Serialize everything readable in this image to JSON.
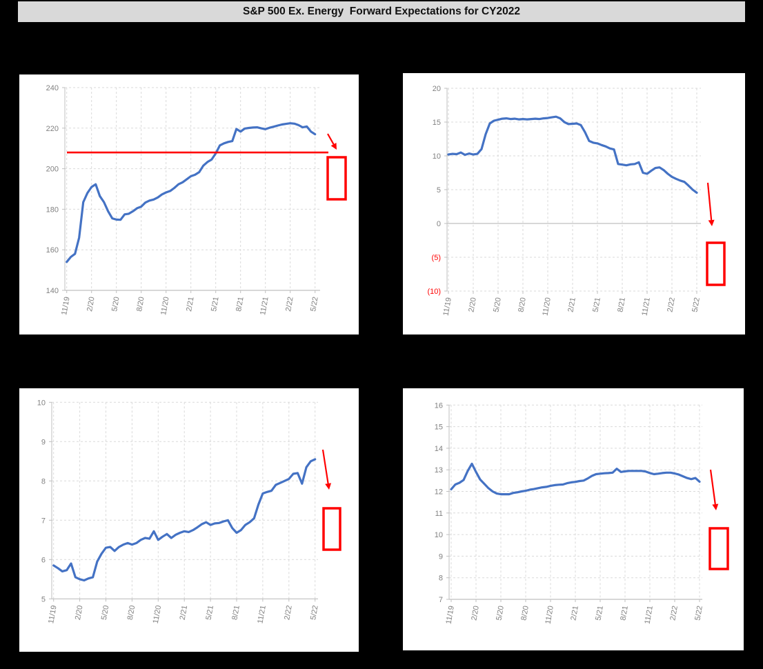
{
  "title_bar": {
    "text": "S&P 500 Ex. Energy  Forward Expectations for CY2022"
  },
  "colors": {
    "background": "#000000",
    "title_bar_bg": "#d9d9d9",
    "title_text": "#111111",
    "panel_bg": "#ffffff",
    "series_line": "#4472c4",
    "grid": "#d9d9d9",
    "axis": "#bfbfbf",
    "tick_label": "#808080",
    "annotation_red": "#ff0000"
  },
  "x_tick_labels": [
    "11/19",
    "2/20",
    "5/20",
    "8/20",
    "11/20",
    "2/21",
    "5/21",
    "8/21",
    "11/21",
    "2/22",
    "5/22"
  ],
  "x_tick_months": [
    0,
    3,
    6,
    9,
    12,
    15,
    18,
    21,
    24,
    27,
    30
  ],
  "chart_data": [
    {
      "name": "top-left-chart",
      "type": "line",
      "x_unit": "months from 11/19, weekly-style series sampled every 0.5 month",
      "x_step_months": 0.5,
      "ylim": [
        140,
        240
      ],
      "y_ticks": [
        {
          "value": 240,
          "label": "240"
        },
        {
          "value": 220,
          "label": "220"
        },
        {
          "value": 200,
          "label": "200"
        },
        {
          "value": 180,
          "label": "180"
        },
        {
          "value": 160,
          "label": "160"
        },
        {
          "value": 140,
          "label": "140"
        }
      ],
      "baseline_value": 140,
      "values": [
        154,
        156.5,
        158,
        166,
        183.5,
        188,
        191,
        192.3,
        186.5,
        183.5,
        179,
        175.5,
        174.9,
        174.8,
        177.5,
        177.8,
        179,
        180.5,
        181.3,
        183.3,
        184.3,
        184.8,
        185.8,
        187.3,
        188.3,
        189,
        190.5,
        192.3,
        193.3,
        194.8,
        196.3,
        197,
        198.3,
        201.5,
        203.3,
        204.5,
        207.5,
        211.5,
        212.5,
        213.2,
        213.6,
        219.6,
        218.3,
        219.8,
        220.1,
        220.3,
        220.4,
        219.9,
        219.5,
        220.2,
        220.7,
        221.3,
        221.8,
        222.1,
        222.4,
        222.2,
        221.5,
        220.4,
        220.8,
        218.3,
        217
      ],
      "annotations": {
        "red_hline": {
          "value": 208,
          "x1": 69,
          "x2": 448
        },
        "red_arrow": {
          "x1": 447,
          "y1": 86,
          "x2": 460,
          "y2": 109
        },
        "red_box": {
          "x": 447,
          "y": 120,
          "w": 26,
          "h": 61
        }
      }
    },
    {
      "name": "top-right-chart",
      "type": "line",
      "x_unit": "months from 11/19, sampled every 0.5 month",
      "x_step_months": 0.5,
      "ylim": [
        -10,
        20
      ],
      "y_ticks": [
        {
          "value": 20,
          "label": "20"
        },
        {
          "value": 15,
          "label": "15"
        },
        {
          "value": 10,
          "label": "10"
        },
        {
          "value": 5,
          "label": "5"
        },
        {
          "value": 0,
          "label": "0"
        },
        {
          "value": -5,
          "label": "(5)",
          "red": true
        },
        {
          "value": -10,
          "label": "(10)",
          "red": true
        }
      ],
      "baseline_value": 0,
      "values": [
        10.2,
        10.3,
        10.25,
        10.5,
        10.15,
        10.35,
        10.2,
        10.3,
        11,
        13.2,
        14.8,
        15.2,
        15.35,
        15.5,
        15.55,
        15.45,
        15.5,
        15.4,
        15.45,
        15.4,
        15.45,
        15.5,
        15.45,
        15.55,
        15.6,
        15.7,
        15.8,
        15.55,
        15,
        14.7,
        14.75,
        14.8,
        14.55,
        13.5,
        12.2,
        11.95,
        11.85,
        11.6,
        11.4,
        11.1,
        10.95,
        8.8,
        8.7,
        8.6,
        8.75,
        8.8,
        9.05,
        7.5,
        7.35,
        7.8,
        8.2,
        8.3,
        7.9,
        7.35,
        6.9,
        6.6,
        6.35,
        6.15,
        5.6,
        5,
        4.55
      ],
      "annotations": {
        "red_arrow": {
          "x1": 442,
          "y1": 159,
          "x2": 448,
          "y2": 222
        },
        "red_box": {
          "x": 441,
          "y": 246,
          "w": 25,
          "h": 61
        }
      }
    },
    {
      "name": "bottom-left-chart",
      "type": "line",
      "x_unit": "months from 11/19, sampled every 0.5 month",
      "x_step_months": 0.5,
      "ylim": [
        5,
        10
      ],
      "y_ticks": [
        {
          "value": 10,
          "label": "10"
        },
        {
          "value": 9,
          "label": "9"
        },
        {
          "value": 8,
          "label": "8"
        },
        {
          "value": 7,
          "label": "7"
        },
        {
          "value": 6,
          "label": "6"
        },
        {
          "value": 5,
          "label": "5"
        }
      ],
      "baseline_value": 5,
      "values": [
        5.85,
        5.78,
        5.7,
        5.73,
        5.9,
        5.55,
        5.5,
        5.47,
        5.52,
        5.55,
        5.95,
        6.15,
        6.3,
        6.32,
        6.22,
        6.32,
        6.38,
        6.42,
        6.38,
        6.42,
        6.5,
        6.55,
        6.53,
        6.72,
        6.5,
        6.58,
        6.65,
        6.55,
        6.63,
        6.68,
        6.72,
        6.7,
        6.75,
        6.82,
        6.9,
        6.95,
        6.88,
        6.92,
        6.93,
        6.97,
        7,
        6.8,
        6.68,
        6.75,
        6.88,
        6.95,
        7.05,
        7.4,
        7.68,
        7.72,
        7.75,
        7.9,
        7.95,
        8,
        8.05,
        8.18,
        8.2,
        7.93,
        8.35,
        8.5,
        8.55
      ],
      "annotations": {
        "red_arrow": {
          "x1": 440,
          "y1": 89,
          "x2": 449,
          "y2": 147
        },
        "red_box": {
          "x": 441,
          "y": 174,
          "w": 24,
          "h": 60
        }
      }
    },
    {
      "name": "bottom-right-chart",
      "type": "line",
      "x_unit": "months from 11/19, sampled every 0.5 month",
      "x_step_months": 0.5,
      "ylim": [
        7,
        16
      ],
      "y_ticks": [
        {
          "value": 16,
          "label": "16"
        },
        {
          "value": 15,
          "label": "15"
        },
        {
          "value": 14,
          "label": "14"
        },
        {
          "value": 13,
          "label": "13"
        },
        {
          "value": 12,
          "label": "12"
        },
        {
          "value": 11,
          "label": "11"
        },
        {
          "value": 10,
          "label": "10"
        },
        {
          "value": 9,
          "label": "9"
        },
        {
          "value": 8,
          "label": "8"
        },
        {
          "value": 7,
          "label": "7"
        }
      ],
      "baseline_value": 7,
      "values": [
        12.1,
        12.32,
        12.4,
        12.53,
        12.95,
        13.28,
        12.9,
        12.55,
        12.35,
        12.15,
        12,
        11.9,
        11.87,
        11.87,
        11.87,
        11.93,
        11.96,
        12,
        12.03,
        12.08,
        12.11,
        12.15,
        12.19,
        12.21,
        12.26,
        12.29,
        12.31,
        12.32,
        12.38,
        12.42,
        12.44,
        12.48,
        12.5,
        12.6,
        12.72,
        12.8,
        12.82,
        12.84,
        12.85,
        12.87,
        13.05,
        12.9,
        12.93,
        12.95,
        12.95,
        12.95,
        12.95,
        12.92,
        12.85,
        12.8,
        12.82,
        12.85,
        12.87,
        12.87,
        12.83,
        12.78,
        12.7,
        12.62,
        12.57,
        12.62,
        12.45
      ],
      "annotations": {
        "red_arrow": {
          "x1": 446,
          "y1": 118,
          "x2": 454,
          "y2": 177
        },
        "red_box": {
          "x": 445,
          "y": 203,
          "w": 26,
          "h": 59
        }
      }
    }
  ]
}
